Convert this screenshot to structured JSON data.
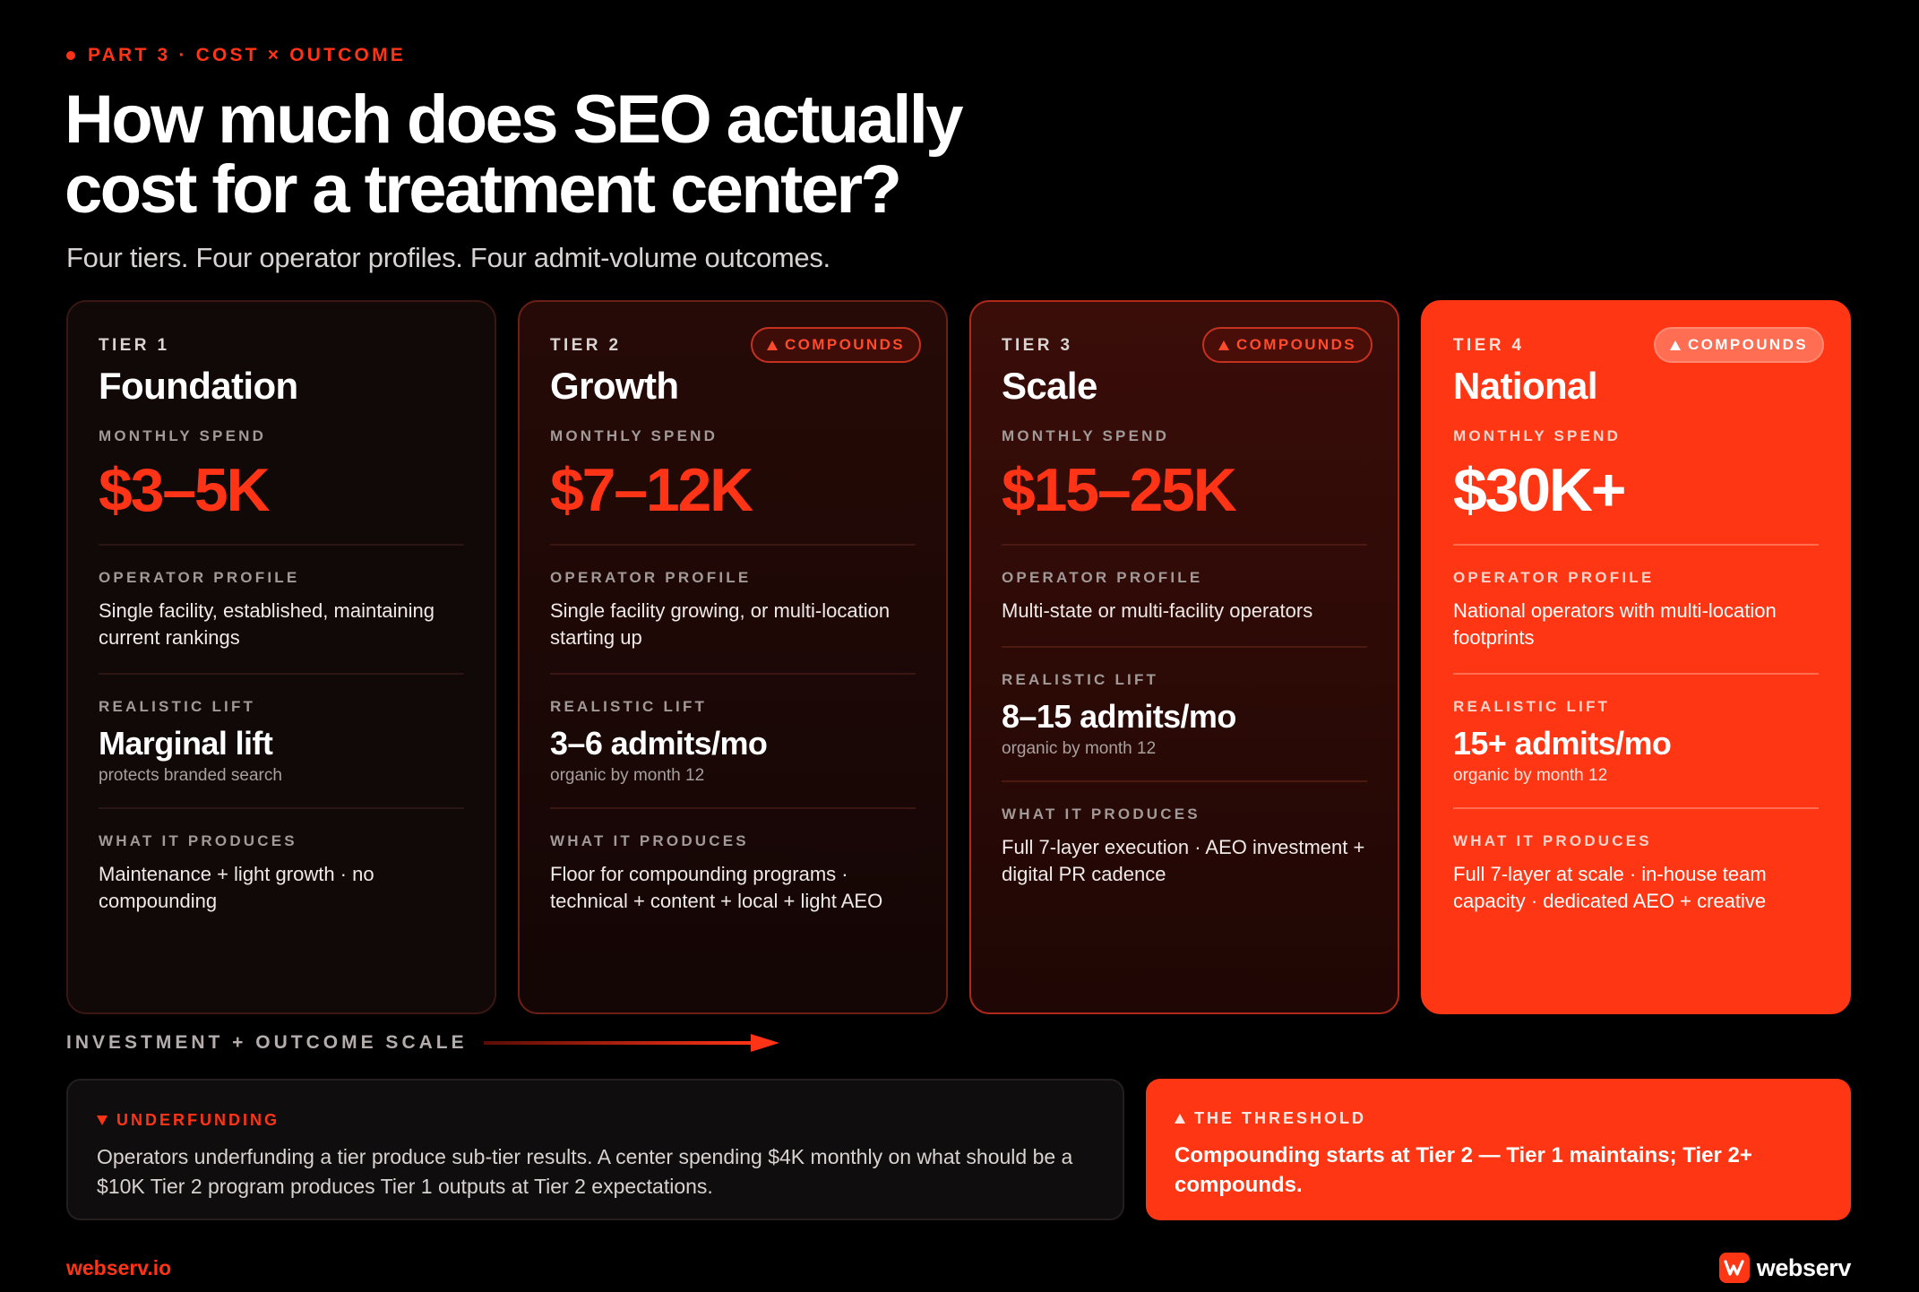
{
  "header": {
    "eyebrow": "PART 3 · COST × OUTCOME",
    "title_line1": "How much does SEO actually",
    "title_line2": "cost for a treatment center?",
    "subtitle": "Four tiers. Four operator profiles. Four admit-volume outcomes."
  },
  "labels": {
    "monthly_spend": "MONTHLY SPEND",
    "operator_profile": "OPERATOR PROFILE",
    "realistic_lift": "REALISTIC LIFT",
    "what_it_produces": "WHAT IT PRODUCES",
    "compounds_badge": "COMPOUNDS"
  },
  "tiers": [
    {
      "tier": "TIER 1",
      "name": "Foundation",
      "spend": "$3–5K",
      "operator_profile": "Single facility, established, maintaining current rankings",
      "lift": "Marginal lift",
      "lift_sub": "protects branded search",
      "produces": "Maintenance + light growth · no compounding"
    },
    {
      "tier": "TIER 2",
      "name": "Growth",
      "spend": "$7–12K",
      "operator_profile": "Single facility growing, or multi-location starting up",
      "lift": "3–6 admits/mo",
      "lift_sub": "organic by month 12",
      "produces": "Floor for compounding programs · technical + content + local + light AEO"
    },
    {
      "tier": "TIER 3",
      "name": "Scale",
      "spend": "$15–25K",
      "operator_profile": "Multi-state or multi-facility operators",
      "lift": "8–15 admits/mo",
      "lift_sub": "organic by month 12",
      "produces": "Full 7-layer execution · AEO investment + digital PR cadence"
    },
    {
      "tier": "TIER 4",
      "name": "National",
      "spend": "$30K+",
      "operator_profile": "National operators with multi-location footprints",
      "lift": "15+ admits/mo",
      "lift_sub": "organic by month 12",
      "produces": "Full 7-layer at scale · in-house team capacity · dedicated AEO + creative"
    }
  ],
  "scale": {
    "label": "INVESTMENT + OUTCOME SCALE"
  },
  "underfunding": {
    "heading": "UNDERFUNDING",
    "body": "Operators underfunding a tier produce sub-tier results. A center spending $4K monthly on what should be a $10K Tier 2 program produces Tier 1 outputs at Tier 2 expectations."
  },
  "threshold": {
    "heading": "THE THRESHOLD",
    "body": "Compounding starts at Tier 2 — Tier 1 maintains; Tier 2+ compounds."
  },
  "footer": {
    "url": "webserv.io",
    "brand": "webserv"
  },
  "colors": {
    "accent": "#ff3417",
    "background": "#000000",
    "tier4_fill": "#ff3614"
  },
  "icons": [
    "dot-icon",
    "triangle-up-icon",
    "triangle-down-icon",
    "arrow-right-icon",
    "webserv-logo-icon"
  ]
}
